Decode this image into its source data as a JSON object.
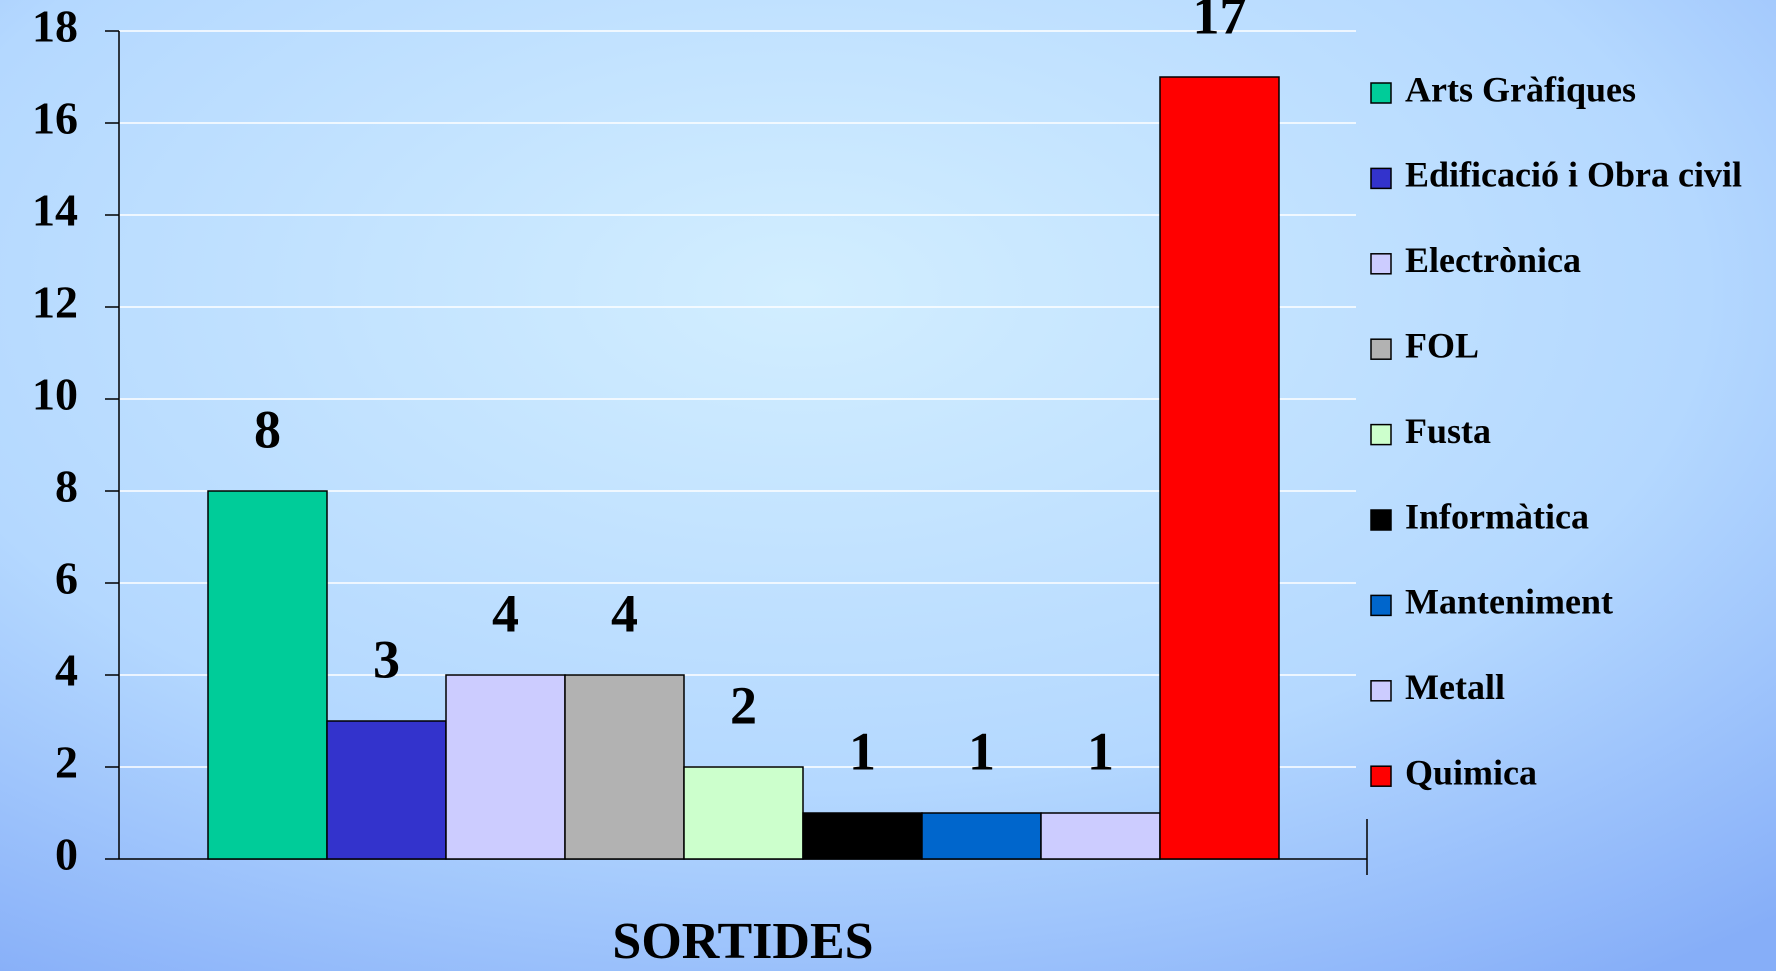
{
  "chart_data": {
    "type": "bar",
    "categories": [
      "SORTIDES"
    ],
    "series": [
      {
        "name": "Arts Gràfiques",
        "color": "#00cc99",
        "values": [
          8
        ]
      },
      {
        "name": "Edificació i Obra civil",
        "color": "#3333cc",
        "values": [
          3
        ]
      },
      {
        "name": "Electrònica",
        "color": "#ccccff",
        "values": [
          4
        ]
      },
      {
        "name": "FOL",
        "color": "#b2b2b2",
        "values": [
          4
        ]
      },
      {
        "name": "Fusta",
        "color": "#ccffcc",
        "values": [
          2
        ]
      },
      {
        "name": "Informàtica",
        "color": "#000000",
        "values": [
          1
        ]
      },
      {
        "name": "Manteniment",
        "color": "#0066cc",
        "values": [
          1
        ]
      },
      {
        "name": "Metall",
        "color": "#ccccff",
        "values": [
          1
        ]
      },
      {
        "name": "Quimica",
        "color": "#ff0000",
        "values": [
          17
        ]
      }
    ],
    "ylim": [
      0,
      18
    ],
    "yticks": [
      0,
      2,
      4,
      6,
      8,
      10,
      12,
      14,
      16,
      18
    ],
    "grid": true,
    "legend": "right"
  }
}
